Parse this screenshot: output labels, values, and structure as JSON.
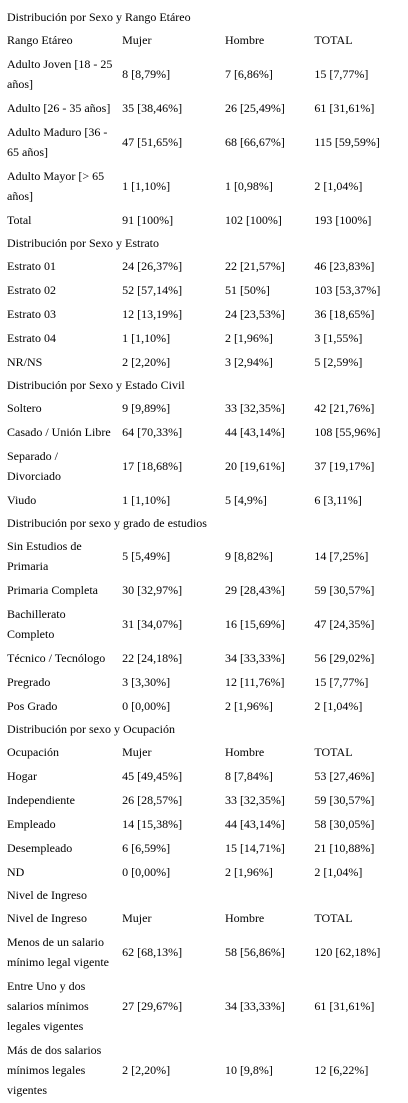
{
  "sections": [
    {
      "title": "Distribución por Sexo y Rango Etáreo",
      "header": [
        "Rango Etáreo",
        "Mujer",
        "Hombre",
        "TOTAL"
      ],
      "rows": [
        [
          "Adulto Joven [18 - 25 años]",
          "8 [8,79%]",
          "7 [6,86%]",
          "15 [7,77%]"
        ],
        [
          "Adulto [26 - 35 años]",
          "35 [38,46%]",
          "26 [25,49%]",
          "61 [31,61%]"
        ],
        [
          "Adulto Maduro [36 - 65 años]",
          "47 [51,65%]",
          "68 [66,67%]",
          "115 [59,59%]"
        ],
        [
          "Adulto Mayor [> 65 años]",
          "1 [1,10%]",
          "1 [0,98%]",
          "2 [1,04%]"
        ],
        [
          "Total",
          "91 [100%]",
          "102 [100%]",
          "193 [100%]"
        ]
      ]
    },
    {
      "title": "Distribución por Sexo y Estrato",
      "header": null,
      "rows": [
        [
          "Estrato 01",
          "24 [26,37%]",
          "22 [21,57%]",
          "46 [23,83%]"
        ],
        [
          "Estrato 02",
          "52 [57,14%]",
          "51 [50%]",
          "103 [53,37%]"
        ],
        [
          "Estrato 03",
          "12 [13,19%]",
          "24 [23,53%]",
          "36 [18,65%]"
        ],
        [
          "Estrato 04",
          "1 [1,10%]",
          "2 [1,96%]",
          "3 [1,55%]"
        ],
        [
          "NR/NS",
          "2 [2,20%]",
          "3 [2,94%]",
          "5 [2,59%]"
        ]
      ]
    },
    {
      "title": "Distribución por Sexo y Estado Civil",
      "header": null,
      "rows": [
        [
          "Soltero",
          "9 [9,89%]",
          "33 [32,35%]",
          "42 [21,76%]"
        ],
        [
          "Casado / Unión Libre",
          "64 [70,33%]",
          "44 [43,14%]",
          "108 [55,96%]"
        ],
        [
          "Separado / Divorciado",
          "17 [18,68%]",
          "20 [19,61%]",
          "37 [19,17%]"
        ],
        [
          "Viudo",
          "1 [1,10%]",
          "5 [4,9%]",
          "6 [3,11%]"
        ]
      ]
    },
    {
      "title": "Distribución por sexo y grado de estudios",
      "header": null,
      "rows": [
        [
          "Sin Estudios de Primaria",
          "5 [5,49%]",
          "9 [8,82%]",
          "14 [7,25%]"
        ],
        [
          "Primaria Completa",
          "30 [32,97%]",
          "29 [28,43%]",
          "59 [30,57%]"
        ],
        [
          "Bachillerato Completo",
          "31 [34,07%]",
          "16 [15,69%]",
          "47 [24,35%]"
        ],
        [
          "Técnico / Tecnólogo",
          "22 [24,18%]",
          "34 [33,33%]",
          "56 [29,02%]"
        ],
        [
          "Pregrado",
          "3 [3,30%]",
          "12 [11,76%]",
          "15 [7,77%]"
        ],
        [
          "Pos Grado",
          "0 [0,00%]",
          "2 [1,96%]",
          "2 [1,04%]"
        ]
      ]
    },
    {
      "title": "Distribución por sexo y Ocupación",
      "header": [
        "Ocupación",
        "Mujer",
        "Hombre",
        "TOTAL"
      ],
      "rows": [
        [
          "Hogar",
          "45 [49,45%]",
          "8 [7,84%]",
          "53 [27,46%]"
        ],
        [
          "Independiente",
          "26 [28,57%]",
          "33 [32,35%]",
          "59 [30,57%]"
        ],
        [
          "Empleado",
          "14 [15,38%]",
          "44 [43,14%]",
          "58 [30,05%]"
        ],
        [
          "Desempleado",
          "6 [6,59%]",
          "15 [14,71%]",
          "21 [10,88%]"
        ],
        [
          "ND",
          "0 [0,00%]",
          "2 [1,96%]",
          "2 [1,04%]"
        ]
      ]
    },
    {
      "title": "Nivel de Ingreso",
      "header": [
        "Nivel de Ingreso",
        "Mujer",
        "Hombre",
        "TOTAL"
      ],
      "rows": [
        [
          "Menos de un salario mínimo legal vigente",
          "62 [68,13%]",
          "58 [56,86%]",
          "120 [62,18%]"
        ],
        [
          "Entre Uno y dos salarios mínimos legales vigentes",
          "27 [29,67%]",
          "34 [33,33%]",
          "61 [31,61%]"
        ],
        [
          "Más de dos salarios mínimos legales vigentes",
          "2 [2,20%]",
          "10 [9,8%]",
          "12 [6,22%]"
        ]
      ]
    }
  ]
}
